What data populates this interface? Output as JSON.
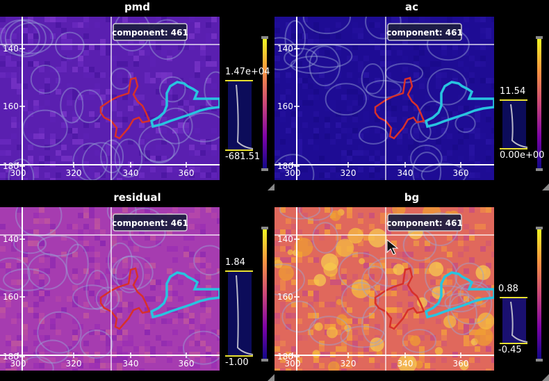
{
  "cursor": "pointer-arrow",
  "panels": [
    {
      "id": "pmd",
      "title": "pmd",
      "label": "component: 461",
      "level_top": "1.47e+04",
      "level_bottom": "-681.51",
      "bg": "#5a1fb0",
      "speck": [
        "#6b2bc0",
        "#4a15a0",
        "#7a35c8",
        "#5d22b5"
      ],
      "cbar_fill": "#0c0c5a"
    },
    {
      "id": "ac",
      "title": "ac",
      "label": "component: 461",
      "level_top": "11.54",
      "level_bottom": "0.00e+00",
      "bg": "#1e0c94",
      "speck": [
        "#25109e",
        "#1a0a8a",
        "#2a14a4",
        "#200d98"
      ],
      "cbar_fill": "#0c0c5a"
    },
    {
      "id": "residual",
      "title": "residual",
      "label": "component: 461",
      "level_top": "1.84",
      "level_bottom": "-1.00",
      "bg": "#a63cb0",
      "speck": [
        "#b84aa8",
        "#9a2eb4",
        "#c2589c",
        "#8e28b0"
      ],
      "cbar_fill": "#0c0c5a"
    },
    {
      "id": "bg",
      "title": "bg",
      "label": "component: 461",
      "level_top": "0.88",
      "level_bottom": "-0.45",
      "bg": "#e0685c",
      "speck": [
        "#f08a48",
        "#d45a70",
        "#f4a03c",
        "#c84c80"
      ],
      "cbar_fill": "#1a1070"
    }
  ],
  "axes": {
    "x_ticks": [
      "300",
      "320",
      "340",
      "360"
    ],
    "y_ticks": [
      "140",
      "160",
      "180"
    ]
  },
  "colors": {
    "roi_red": "#d8302a",
    "roi_cyan": "#28c4e0",
    "grid": "#ffffff",
    "contour": "#9aa6d8",
    "level_line": "#e8e030"
  }
}
